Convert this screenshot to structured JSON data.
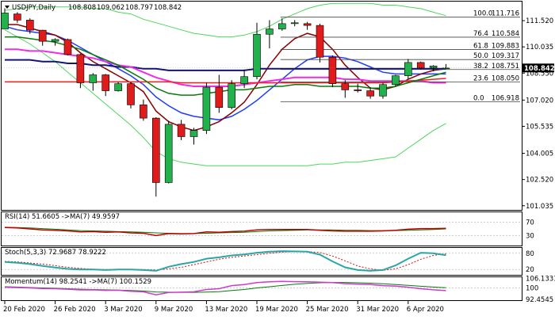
{
  "window": {
    "title": "USDJPY,Daily",
    "ohlc": [
      "108.808",
      "109.062",
      "108.797",
      "108.842"
    ]
  },
  "colors": {
    "bull_candle": "#22b14c",
    "bear_candle": "#e01b1b",
    "blue_ma": "#1e3cff",
    "darkred_ma": "#8b0000",
    "green_ma": "#0a7a0a",
    "red_ma": "#ff1a1a",
    "navy_ma": "#141478",
    "magenta_ma": "#ee2ee6",
    "bollinger": "#4fd65c",
    "fib_lines": "#444444",
    "rsi_line": "#c00000",
    "rsi_ma": "#0a7a0a",
    "stoch_main": "#2aa6a6",
    "stoch_signal": "#d01010",
    "momentum_line": "#d03ad0",
    "momentum_ma": "#0a7a0a",
    "current_price_bg": "#000000"
  },
  "chart_data": {
    "type": "candlestick",
    "symbol": "USDJPY",
    "timeframe": "Daily",
    "x_labels": [
      "20 Feb 2020",
      "26 Feb 2020",
      "3 Mar 2020",
      "9 Mar 2020",
      "13 Mar 2020",
      "19 Mar 2020",
      "25 Mar 2020",
      "31 Mar 2020",
      "6 Apr 2020"
    ],
    "x_label_index": [
      0,
      4,
      8,
      12,
      16,
      20,
      24,
      28,
      32
    ],
    "price_axis_ticks": [
      "111.520",
      "110.035",
      "108.550",
      "107.020",
      "105.535",
      "104.005",
      "102.520",
      "101.035"
    ],
    "price_axis_values": [
      111.52,
      110.035,
      108.55,
      107.02,
      105.535,
      104.005,
      102.52,
      101.035
    ],
    "current_price": "108.842",
    "current_price_value": 108.842,
    "ylim": [
      100.8,
      112.6
    ],
    "candles": [
      {
        "o": 111.05,
        "h": 112.22,
        "l": 111.05,
        "c": 111.95
      },
      {
        "o": 111.9,
        "h": 112.0,
        "l": 111.4,
        "c": 111.55
      },
      {
        "o": 111.55,
        "h": 111.65,
        "l": 110.78,
        "c": 110.98
      },
      {
        "o": 110.98,
        "h": 111.0,
        "l": 110.1,
        "c": 110.35
      },
      {
        "o": 110.35,
        "h": 110.52,
        "l": 110.1,
        "c": 110.45
      },
      {
        "o": 110.45,
        "h": 110.5,
        "l": 109.55,
        "c": 109.6
      },
      {
        "o": 109.6,
        "h": 109.65,
        "l": 107.7,
        "c": 108.0
      },
      {
        "o": 108.0,
        "h": 108.55,
        "l": 107.55,
        "c": 108.45
      },
      {
        "o": 108.45,
        "h": 108.5,
        "l": 107.25,
        "c": 107.55
      },
      {
        "o": 107.55,
        "h": 108.05,
        "l": 107.5,
        "c": 107.95
      },
      {
        "o": 107.95,
        "h": 108.0,
        "l": 106.55,
        "c": 106.75
      },
      {
        "o": 106.75,
        "h": 107.05,
        "l": 105.85,
        "c": 106.0
      },
      {
        "o": 106.0,
        "h": 106.05,
        "l": 101.55,
        "c": 102.35
      },
      {
        "o": 102.35,
        "h": 105.85,
        "l": 102.3,
        "c": 105.65
      },
      {
        "o": 105.65,
        "h": 105.9,
        "l": 104.75,
        "c": 104.95
      },
      {
        "o": 104.95,
        "h": 105.45,
        "l": 104.5,
        "c": 105.3
      },
      {
        "o": 105.3,
        "h": 108.0,
        "l": 105.1,
        "c": 107.75
      },
      {
        "o": 107.75,
        "h": 108.45,
        "l": 106.3,
        "c": 106.6
      },
      {
        "o": 106.6,
        "h": 108.15,
        "l": 106.5,
        "c": 107.95
      },
      {
        "o": 107.95,
        "h": 108.75,
        "l": 107.7,
        "c": 108.35
      },
      {
        "o": 108.35,
        "h": 111.4,
        "l": 108.2,
        "c": 110.75
      },
      {
        "o": 110.75,
        "h": 111.55,
        "l": 109.95,
        "c": 111.05
      },
      {
        "o": 111.05,
        "h": 111.65,
        "l": 110.95,
        "c": 111.35
      },
      {
        "o": 111.35,
        "h": 111.55,
        "l": 111.2,
        "c": 111.4
      },
      {
        "o": 111.35,
        "h": 111.45,
        "l": 111.0,
        "c": 111.25
      },
      {
        "o": 111.25,
        "h": 111.35,
        "l": 109.15,
        "c": 109.45
      },
      {
        "o": 109.45,
        "h": 109.55,
        "l": 107.75,
        "c": 107.95
      },
      {
        "o": 107.95,
        "h": 108.15,
        "l": 107.15,
        "c": 107.6
      },
      {
        "o": 107.6,
        "h": 107.95,
        "l": 107.45,
        "c": 107.55
      },
      {
        "o": 107.55,
        "h": 107.75,
        "l": 107.1,
        "c": 107.25
      },
      {
        "o": 107.25,
        "h": 108.0,
        "l": 107.1,
        "c": 107.9
      },
      {
        "o": 107.9,
        "h": 108.45,
        "l": 107.8,
        "c": 108.4
      },
      {
        "o": 108.4,
        "h": 109.35,
        "l": 108.2,
        "c": 109.15
      },
      {
        "o": 109.15,
        "h": 109.2,
        "l": 108.75,
        "c": 108.85
      },
      {
        "o": 108.85,
        "h": 109.0,
        "l": 108.65,
        "c": 108.95
      },
      {
        "o": 108.81,
        "h": 109.06,
        "l": 108.8,
        "c": 108.84
      }
    ],
    "moving_averages": [
      {
        "color_key": "blue_ma",
        "values": [
          111.2,
          111.0,
          110.9,
          110.8,
          110.7,
          110.4,
          110.0,
          109.6,
          109.2,
          108.8,
          108.4,
          107.9,
          107.2,
          106.7,
          106.3,
          106.1,
          106.0,
          105.9,
          106.1,
          106.5,
          107.0,
          107.6,
          108.2,
          108.8,
          109.3,
          109.5,
          109.5,
          109.4,
          109.2,
          108.9,
          108.6,
          108.5,
          108.5,
          108.5,
          108.5,
          108.5
        ]
      },
      {
        "color_key": "darkred_ma",
        "values": [
          111.3,
          111.3,
          111.1,
          110.9,
          110.7,
          110.3,
          109.7,
          109.2,
          108.8,
          108.4,
          108.0,
          107.5,
          106.4,
          105.8,
          105.5,
          105.3,
          105.5,
          105.8,
          106.3,
          106.9,
          107.9,
          109.0,
          109.9,
          110.5,
          110.8,
          110.6,
          109.9,
          109.0,
          108.3,
          107.7,
          107.6,
          107.8,
          108.2,
          108.5,
          108.7,
          108.8
        ]
      },
      {
        "color_key": "navy_ma",
        "values": [
          109.3,
          109.3,
          109.3,
          109.2,
          109.2,
          109.1,
          109.1,
          109.0,
          109.0,
          108.9,
          108.9,
          108.8,
          108.8,
          108.7,
          108.7,
          108.7,
          108.7,
          108.7,
          108.7,
          108.7,
          108.8,
          108.8,
          108.8,
          108.8,
          108.8,
          108.8,
          108.8,
          108.8,
          108.8,
          108.8,
          108.8,
          108.8,
          108.8,
          108.8,
          108.8,
          108.8
        ]
      },
      {
        "color_key": "magenta_ma",
        "values": [
          109.9,
          109.9,
          109.8,
          109.8,
          109.7,
          109.6,
          109.5,
          109.4,
          109.2,
          109.0,
          108.9,
          108.6,
          108.3,
          108.1,
          107.9,
          107.8,
          107.8,
          107.8,
          107.8,
          107.9,
          108.0,
          108.1,
          108.2,
          108.3,
          108.3,
          108.3,
          108.3,
          108.2,
          108.2,
          108.1,
          108.1,
          108.1,
          108.1,
          108.1,
          108.0,
          108.0
        ]
      },
      {
        "color_key": "red_ma",
        "values": [
          108.05,
          108.05,
          108.05,
          108.05,
          108.05,
          108.05,
          108.05,
          108.05,
          108.05,
          108.05,
          108.05,
          108.05,
          108.05,
          108.05,
          108.0,
          108.0,
          108.0,
          108.0,
          108.0,
          108.0,
          108.0,
          108.0,
          108.0,
          108.0,
          108.0,
          108.0,
          108.0,
          108.0,
          108.0,
          108.0,
          108.0,
          108.05,
          108.1,
          108.15,
          108.2,
          108.25
        ]
      },
      {
        "color_key": "green_ma",
        "values": [
          110.6,
          110.6,
          110.5,
          110.4,
          110.3,
          110.1,
          109.9,
          109.6,
          109.3,
          109.0,
          108.6,
          108.2,
          107.7,
          107.4,
          107.3,
          107.3,
          107.4,
          107.5,
          107.6,
          107.6,
          107.7,
          107.8,
          107.8,
          107.9,
          107.9,
          107.8,
          107.8,
          107.8,
          107.8,
          107.7,
          107.7,
          107.8,
          108.0,
          108.2,
          108.4,
          108.6
        ]
      }
    ],
    "bollinger": {
      "upper": [
        112.1,
        112.2,
        112.3,
        112.3,
        112.3,
        112.3,
        112.3,
        112.2,
        112.2,
        112.0,
        111.9,
        111.6,
        111.4,
        111.2,
        111.0,
        110.8,
        110.7,
        110.6,
        110.6,
        110.7,
        110.9,
        111.2,
        111.6,
        111.9,
        112.2,
        112.4,
        112.5,
        112.5,
        112.5,
        112.5,
        112.4,
        112.4,
        112.3,
        112.2,
        112.0,
        111.8
      ],
      "lower": [
        111.0,
        110.6,
        110.2,
        109.7,
        109.2,
        108.6,
        108.0,
        107.4,
        106.8,
        106.2,
        105.6,
        104.9,
        104.1,
        103.7,
        103.5,
        103.4,
        103.3,
        103.3,
        103.3,
        103.3,
        103.3,
        103.3,
        103.3,
        103.3,
        103.3,
        103.4,
        103.4,
        103.5,
        103.5,
        103.6,
        103.7,
        103.8,
        104.3,
        104.8,
        105.3,
        105.7
      ]
    },
    "fibonacci": [
      {
        "label": "100.0",
        "value": 111.716,
        "text": "111.716"
      },
      {
        "label": "76.4",
        "value": 110.584,
        "text": "110.584"
      },
      {
        "label": "61.8",
        "value": 109.883,
        "text": "109.883"
      },
      {
        "label": "50.0",
        "value": 109.317,
        "text": "109.317"
      },
      {
        "label": "38.2",
        "value": 108.751,
        "text": "108.751"
      },
      {
        "label": "23.6",
        "value": 108.05,
        "text": "108.050"
      },
      {
        "label": "0.0",
        "value": 106.918,
        "text": "106.918"
      }
    ],
    "fib_start_index": 22,
    "indicators": [
      {
        "name": "RSI(14)",
        "header": "RSI(14) 51.6605 ->MA(7) 49.9597",
        "ylim": [
          0,
          100
        ],
        "axis_ticks": [
          "70",
          "30"
        ],
        "axis_values": [
          70,
          30
        ],
        "levels": [
          70,
          30
        ],
        "main_color_key": "rsi_line",
        "ma_color_key": "rsi_ma",
        "main": [
          54,
          53,
          50,
          47,
          46,
          44,
          41,
          42,
          40,
          41,
          38,
          37,
          30,
          36,
          35,
          36,
          41,
          40,
          42,
          43,
          47,
          48,
          48,
          48,
          48,
          46,
          44,
          43,
          43,
          43,
          44,
          46,
          49,
          51,
          51,
          51.7
        ],
        "ma": [
          55,
          54,
          53,
          51,
          49,
          47,
          45,
          44,
          43,
          42,
          41,
          40,
          38,
          37,
          36,
          36,
          37,
          38,
          39,
          40,
          42,
          44,
          45,
          46,
          47,
          47,
          47,
          46,
          46,
          45,
          45,
          45,
          46,
          47,
          48,
          50
        ]
      },
      {
        "name": "Stoch(5,3,3)",
        "header": "Stoch(5,3,3) 72.9687 78.9222",
        "ylim": [
          0,
          100
        ],
        "axis_ticks": [
          "80",
          "20"
        ],
        "axis_values": [
          80,
          20
        ],
        "levels": [
          80,
          20
        ],
        "main_color_key": "stoch_main",
        "ma_color_key": "stoch_signal",
        "main": [
          48,
          45,
          40,
          33,
          27,
          22,
          20,
          20,
          18,
          20,
          20,
          18,
          15,
          30,
          40,
          48,
          60,
          65,
          72,
          76,
          82,
          86,
          88,
          87,
          86,
          75,
          50,
          28,
          18,
          15,
          18,
          35,
          60,
          82,
          80,
          73
        ],
        "ma": [
          50,
          48,
          44,
          40,
          34,
          28,
          24,
          21,
          20,
          20,
          20,
          20,
          18,
          22,
          28,
          38,
          48,
          58,
          65,
          70,
          75,
          80,
          84,
          86,
          86,
          83,
          70,
          52,
          33,
          22,
          17,
          22,
          38,
          58,
          72,
          79
        ]
      },
      {
        "name": "Momentum(14)",
        "header": "Momentum(14) 98.2541 ->MA(7) 100.1529",
        "ylim": [
          92.0,
          107.0
        ],
        "axis_ticks": [
          "106.1331",
          "100",
          "92.4545"
        ],
        "axis_values": [
          106.1331,
          100,
          92.4545
        ],
        "levels": [
          100
        ],
        "main_color_key": "momentum_line",
        "ma_color_key": "momentum_ma",
        "main": [
          100.5,
          100.3,
          100.0,
          99.6,
          99.5,
          99.2,
          98.7,
          98.8,
          98.4,
          98.5,
          97.8,
          97.5,
          95.5,
          97.0,
          97.2,
          97.5,
          99.0,
          99.5,
          101.5,
          102.2,
          103.5,
          104.0,
          104.3,
          104.1,
          104.0,
          103.8,
          103.5,
          102.8,
          102.5,
          102.2,
          101.5,
          101.2,
          100.5,
          99.5,
          98.8,
          98.25
        ],
        "ma": [
          100.8,
          100.6,
          100.3,
          100.0,
          99.8,
          99.5,
          99.2,
          99.0,
          98.8,
          98.6,
          98.3,
          98.0,
          97.4,
          97.2,
          97.1,
          97.1,
          97.3,
          97.6,
          98.3,
          99.0,
          100.0,
          100.8,
          101.6,
          102.4,
          103.0,
          103.4,
          103.6,
          103.6,
          103.4,
          103.1,
          102.7,
          102.2,
          101.7,
          101.1,
          100.6,
          100.15
        ]
      }
    ]
  }
}
